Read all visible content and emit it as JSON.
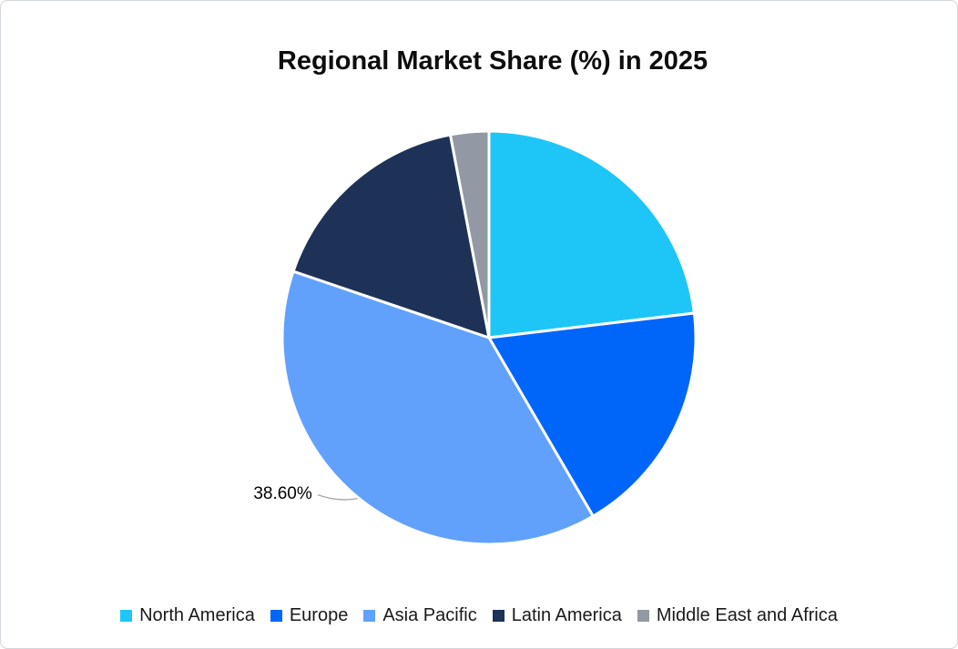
{
  "frame": {
    "background_color": "#FFFFFF",
    "border_color": "#D2D5DA"
  },
  "chart": {
    "title": "Regional Market Share (%) in 2025",
    "title_color": "#0D0D0D",
    "data_label": {
      "text": "38.60%",
      "series": "Asia Pacific",
      "leader_line_color": "#A6A6A6"
    }
  },
  "chart_data": {
    "type": "pie",
    "title": "Regional Market Share (%) in 2025",
    "categories": [
      "North America",
      "Europe",
      "Asia Pacific",
      "Latin America",
      "Middle East and Africa"
    ],
    "values": [
      23.1,
      18.5,
      38.6,
      16.8,
      3.0
    ],
    "colors": [
      "#1EC6F7",
      "#0066FA",
      "#62A1FB",
      "#1E3258",
      "#9399A4"
    ],
    "data_labels": [
      "",
      "",
      "38.60%",
      "",
      ""
    ],
    "labeled_slice_index": 2,
    "start_angle_deg": 0,
    "direction": "clockwise",
    "slice_border_color": "#FFFFFF",
    "slice_border_width": 3,
    "legend_position": "bottom",
    "legend_text_color": "#1A1A1A"
  }
}
